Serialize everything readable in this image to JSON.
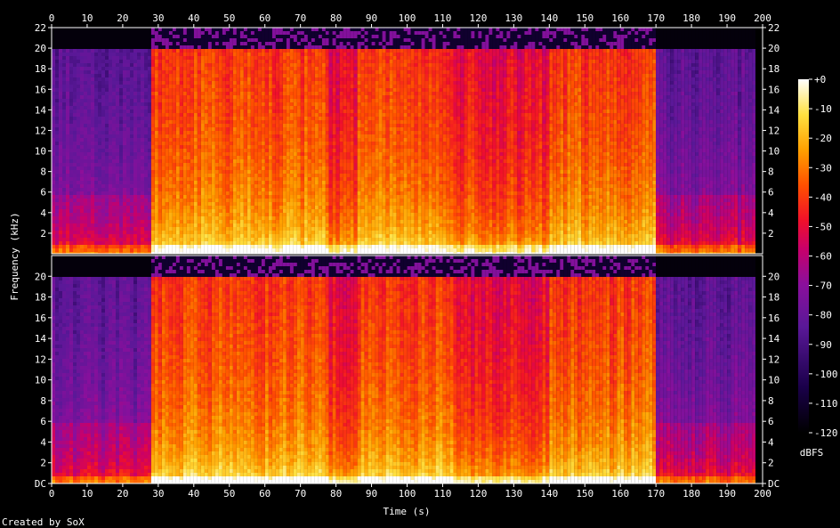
{
  "chart_data": {
    "type": "heatmap",
    "title": "",
    "xlabel": "Time (s)",
    "ylabel": "Frequency (kHz)",
    "colorbar_label": "dBFS",
    "credit": "Created by SoX",
    "x_range": [
      0,
      200
    ],
    "y_range_khz": [
      0,
      22
    ],
    "z_range_dbfs": [
      -120,
      0
    ],
    "x_ticks": [
      "0",
      "10",
      "20",
      "30",
      "40",
      "50",
      "60",
      "70",
      "80",
      "90",
      "100",
      "110",
      "120",
      "130",
      "140",
      "150",
      "160",
      "170",
      "180",
      "190",
      "200"
    ],
    "y_ticks_upper": [
      "2",
      "4",
      "6",
      "8",
      "10",
      "12",
      "14",
      "16",
      "18",
      "20",
      "22"
    ],
    "y_ticks_lower": [
      "DC",
      "2",
      "4",
      "6",
      "8",
      "10",
      "12",
      "14",
      "16",
      "18",
      "20"
    ],
    "colorbar_ticks": [
      "+0",
      "-10",
      "-20",
      "-30",
      "-40",
      "-50",
      "-60",
      "-70",
      "-80",
      "-90",
      "-100",
      "-110",
      "-120"
    ],
    "channels": [
      {
        "segments": [
          {
            "t": [
              0,
              28
            ],
            "level": "quiet"
          },
          {
            "t": [
              28,
              78
            ],
            "level": "loud"
          },
          {
            "t": [
              78,
              86
            ],
            "level": "medium"
          },
          {
            "t": [
              86,
              113
            ],
            "level": "loud"
          },
          {
            "t": [
              113,
              140
            ],
            "level": "medium"
          },
          {
            "t": [
              140,
              170
            ],
            "level": "loud"
          },
          {
            "t": [
              170,
              198
            ],
            "level": "quiet"
          }
        ]
      },
      {
        "segments": [
          {
            "t": [
              0,
              28
            ],
            "level": "quiet"
          },
          {
            "t": [
              28,
              78
            ],
            "level": "loud"
          },
          {
            "t": [
              78,
              86
            ],
            "level": "medium"
          },
          {
            "t": [
              86,
              113
            ],
            "level": "loud"
          },
          {
            "t": [
              113,
              140
            ],
            "level": "medium"
          },
          {
            "t": [
              140,
              170
            ],
            "level": "loud"
          },
          {
            "t": [
              170,
              198
            ],
            "level": "quiet"
          }
        ]
      }
    ]
  }
}
